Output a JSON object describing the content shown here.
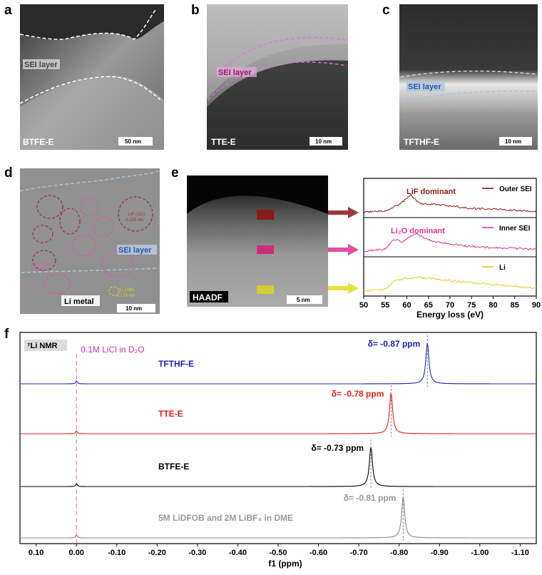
{
  "panels": {
    "a": {
      "letter": "a",
      "sample": "BTFE-E",
      "layer_label": "SEI layer",
      "scale": "50 nm"
    },
    "b": {
      "letter": "b",
      "sample": "TTE-E",
      "layer_label": "SEI layer",
      "scale": "10 nm"
    },
    "c": {
      "letter": "c",
      "sample": "TFTHF-E",
      "layer_label": "SEI layer",
      "scale": "10 nm"
    },
    "d": {
      "letter": "d",
      "layer_label": "SEI layer",
      "metal_label": "Li metal",
      "scale": "10 nm",
      "lif_label_1": "LiF (111)",
      "lif_label_2": "0.233 nm",
      "li2o_label_1": "Li₂O (111)",
      "li2o_label_2": "0.27 nm",
      "li_label_1": "Li (200)",
      "li_label_2": "0.173 nm"
    },
    "e": {
      "letter": "e",
      "haadf_label": "HAADF",
      "scale": "5 nm"
    },
    "f": {
      "letter": "f"
    }
  },
  "colors": {
    "outer": "#8b1a1a",
    "inner": "#d63a8f",
    "li": "#e0d020",
    "tfthf": "#1f1fbf",
    "tte": "#e02020",
    "btfe": "#000000",
    "ref": "#888888",
    "licl": "#cc33aa"
  },
  "chart_data": [
    {
      "type": "line",
      "panel": "e",
      "xlabel": "Energy loss (eV)",
      "xlim": [
        50,
        90
      ],
      "xticks": [
        50,
        55,
        60,
        65,
        70,
        75,
        80,
        85,
        90
      ],
      "series": [
        {
          "name": "Outer SEI",
          "annotation": "LiF dominant",
          "peak_eV": 61
        },
        {
          "name": "Inner SEI",
          "annotation": "Li₂O dominant",
          "peak_eV": 62
        },
        {
          "name": "Li",
          "peak_eV": 61
        }
      ]
    },
    {
      "type": "line",
      "panel": "f",
      "tag": "⁷Li NMR",
      "reference": "0.1M LiCl in D₂O",
      "reference_ppm": 0.0,
      "xlabel": "f1 (ppm)",
      "xlim": [
        0.14,
        -1.14
      ],
      "xticks": [
        0.1,
        0.0,
        -0.1,
        -0.2,
        -0.3,
        -0.4,
        -0.5,
        -0.6,
        -0.7,
        -0.8,
        -0.9,
        -1.0,
        -1.1
      ],
      "xtick_labels": [
        "0.10",
        "0.00",
        "-0.10",
        "-0.20",
        "-0.30",
        "-0.40",
        "-0.50",
        "-0.60",
        "-0.70",
        "-0.80",
        "-0.90",
        "-1.00",
        "-1.10"
      ],
      "series": [
        {
          "name": "TFTHF-E",
          "shift_ppm": -0.87,
          "label": "δ= -0.87 ppm"
        },
        {
          "name": "TTE-E",
          "shift_ppm": -0.78,
          "label": "δ= -0.78 ppm"
        },
        {
          "name": "BTFE-E",
          "shift_ppm": -0.73,
          "label": "δ= -0.73 ppm"
        },
        {
          "name": "5M LiDFOB and 2M LiBF₄ in DME",
          "shift_ppm": -0.81,
          "label": "δ= -0.81 ppm"
        }
      ]
    }
  ]
}
